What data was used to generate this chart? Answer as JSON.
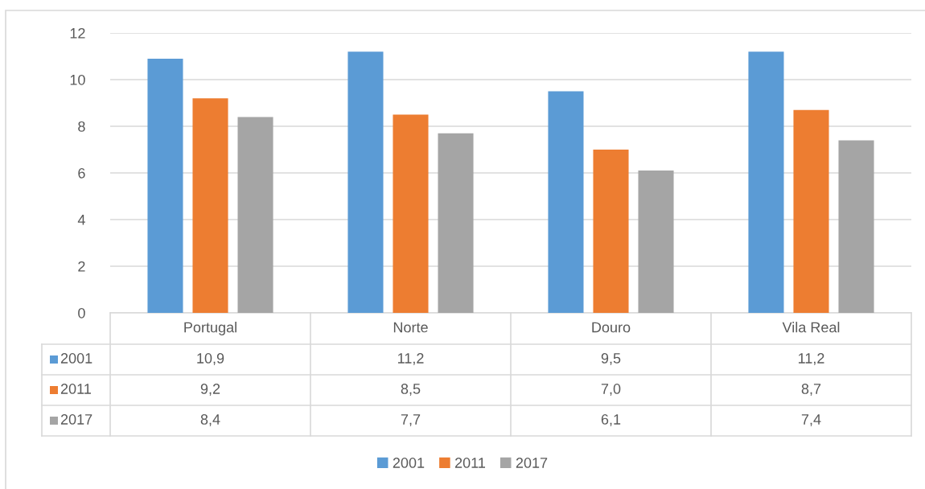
{
  "chart_data": {
    "type": "bar",
    "categories": [
      "Portugal",
      "Norte",
      "Douro",
      "Vila Real"
    ],
    "series": [
      {
        "name": "2001",
        "color": "#5b9bd5",
        "values": [
          10.9,
          11.2,
          9.5,
          11.2
        ],
        "value_labels": [
          "10,9",
          "11,2",
          "9,5",
          "11,2"
        ]
      },
      {
        "name": "2011",
        "color": "#ed7d31",
        "values": [
          9.2,
          8.5,
          7.0,
          8.7
        ],
        "value_labels": [
          "9,2",
          "8,5",
          "7,0",
          "8,7"
        ]
      },
      {
        "name": "2017",
        "color": "#a5a5a5",
        "values": [
          8.4,
          7.7,
          6.1,
          7.4
        ],
        "value_labels": [
          "8,4",
          "7,7",
          "6,1",
          "7,4"
        ]
      }
    ],
    "ylim": [
      0,
      12
    ],
    "yticks": [
      0,
      2,
      4,
      6,
      8,
      10,
      12
    ],
    "grid": "y",
    "legend": "bottom"
  }
}
